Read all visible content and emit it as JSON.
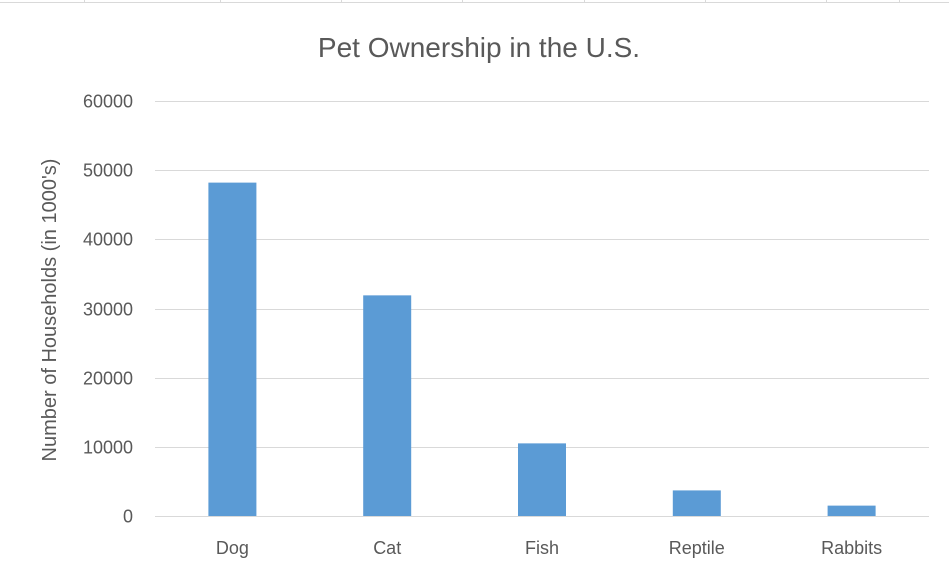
{
  "chart_data": {
    "type": "bar",
    "title": "Pet Ownership in the U.S.",
    "xlabel": "",
    "ylabel": "Number of Households (in 1000's)",
    "categories": [
      "Dog",
      "Cat",
      "Fish",
      "Reptile",
      "Rabbits"
    ],
    "values": [
      48200,
      31900,
      10500,
      3700,
      1500
    ],
    "ylim": [
      0,
      60000
    ],
    "yticks": [
      0,
      10000,
      20000,
      30000,
      40000,
      50000,
      60000
    ],
    "grid": true,
    "legend": "none",
    "bar_color": "#5b9bd5"
  }
}
